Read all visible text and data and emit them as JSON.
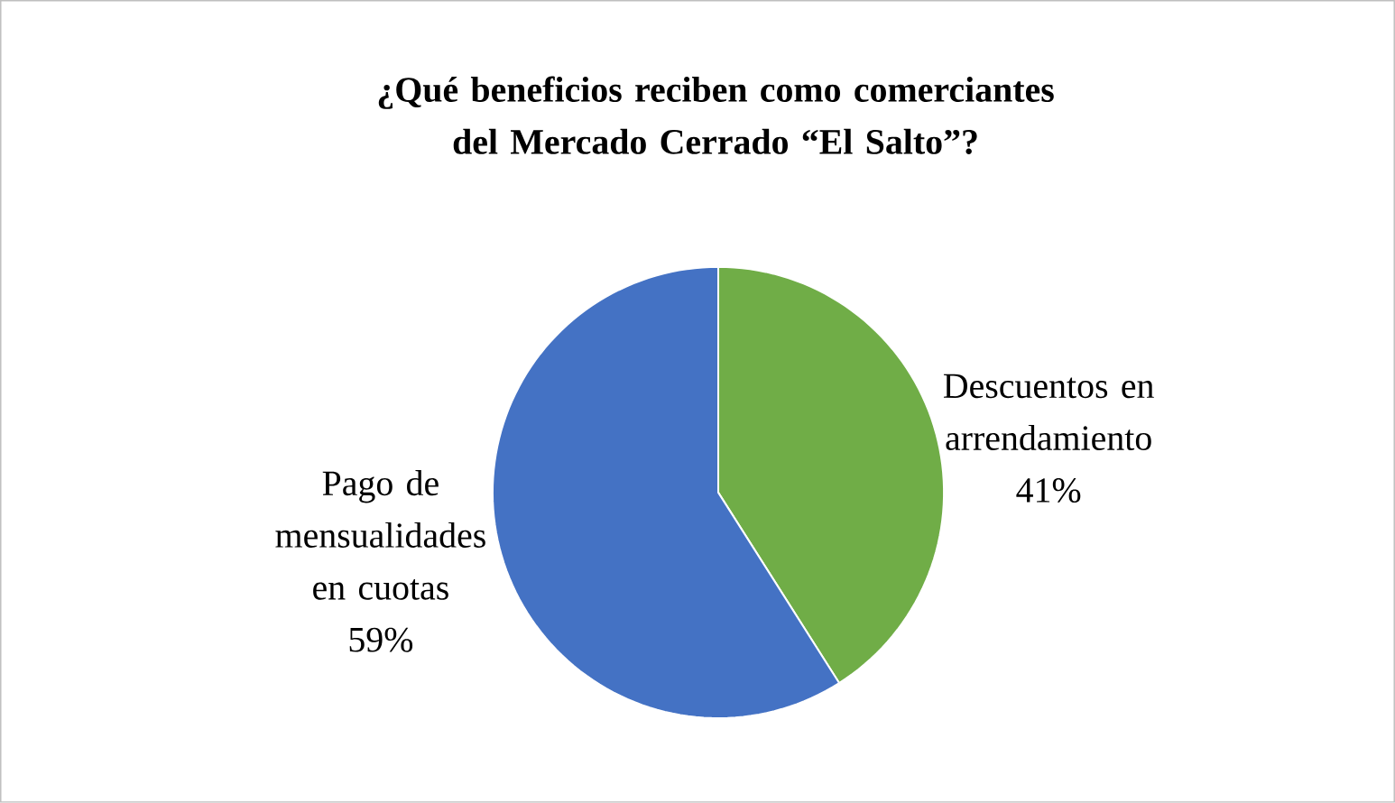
{
  "chart_data": {
    "type": "pie",
    "title": "¿Qué beneficios reciben como comerciantes del Mercado Cerrado “El Salto”?",
    "categories": [
      "Descuentos en arrendamiento",
      "Pago de mensualidades en cuotas"
    ],
    "values": [
      41,
      59
    ],
    "colors": [
      "#70ad47",
      "#4472c4"
    ],
    "value_labels": [
      "41%",
      "59%"
    ]
  }
}
